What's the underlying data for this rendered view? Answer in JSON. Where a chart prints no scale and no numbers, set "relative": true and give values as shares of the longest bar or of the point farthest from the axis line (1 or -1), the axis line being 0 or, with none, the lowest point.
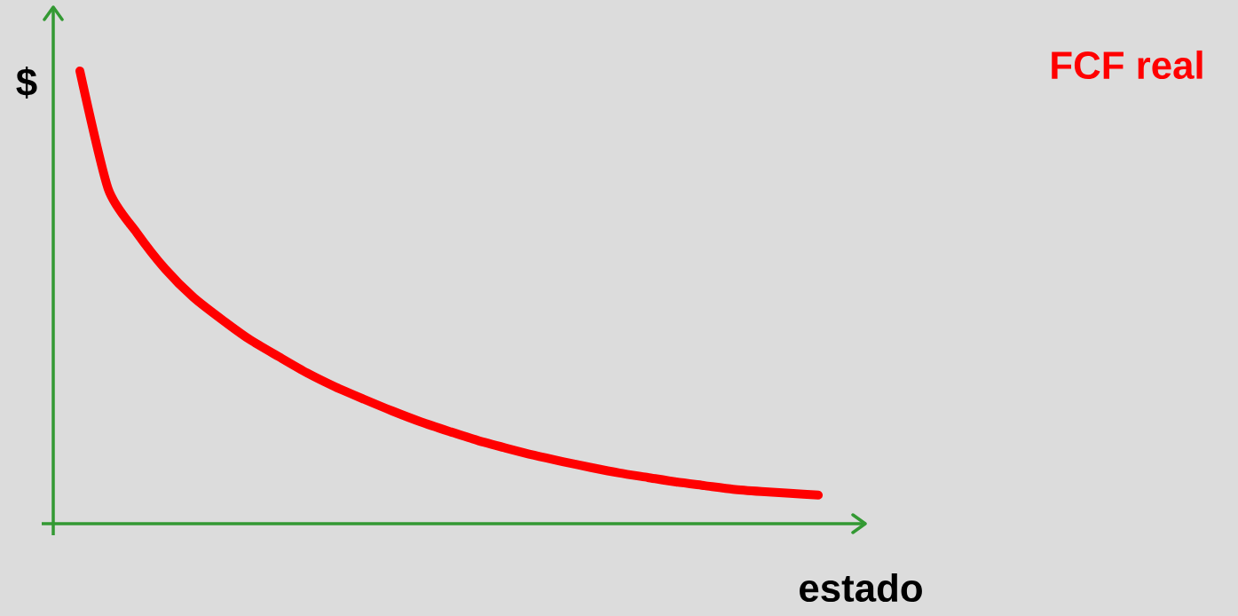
{
  "chart_data": {
    "type": "line",
    "relative": true,
    "xlabel": "estado",
    "ylabel": "$",
    "legend": "top right",
    "categories": [
      null,
      null,
      null,
      null,
      null,
      null,
      null,
      null,
      null,
      null,
      null,
      null,
      null,
      null,
      null,
      null,
      null,
      null,
      null,
      null,
      null,
      null,
      null,
      null,
      null,
      null,
      null
    ],
    "series": [
      {
        "name": "FCF real",
        "color": "#ff0000",
        "values": [
          1,
          0.739,
          0.643,
          0.563,
          0.5,
          0.451,
          0.406,
          0.369,
          0.333,
          0.302,
          0.275,
          0.249,
          0.225,
          0.204,
          0.184,
          0.167,
          0.151,
          0.137,
          0.124,
          0.112,
          0.102,
          0.092,
          0.084,
          0.076,
          0.071,
          0.067,
          0.063
        ]
      }
    ]
  }
}
